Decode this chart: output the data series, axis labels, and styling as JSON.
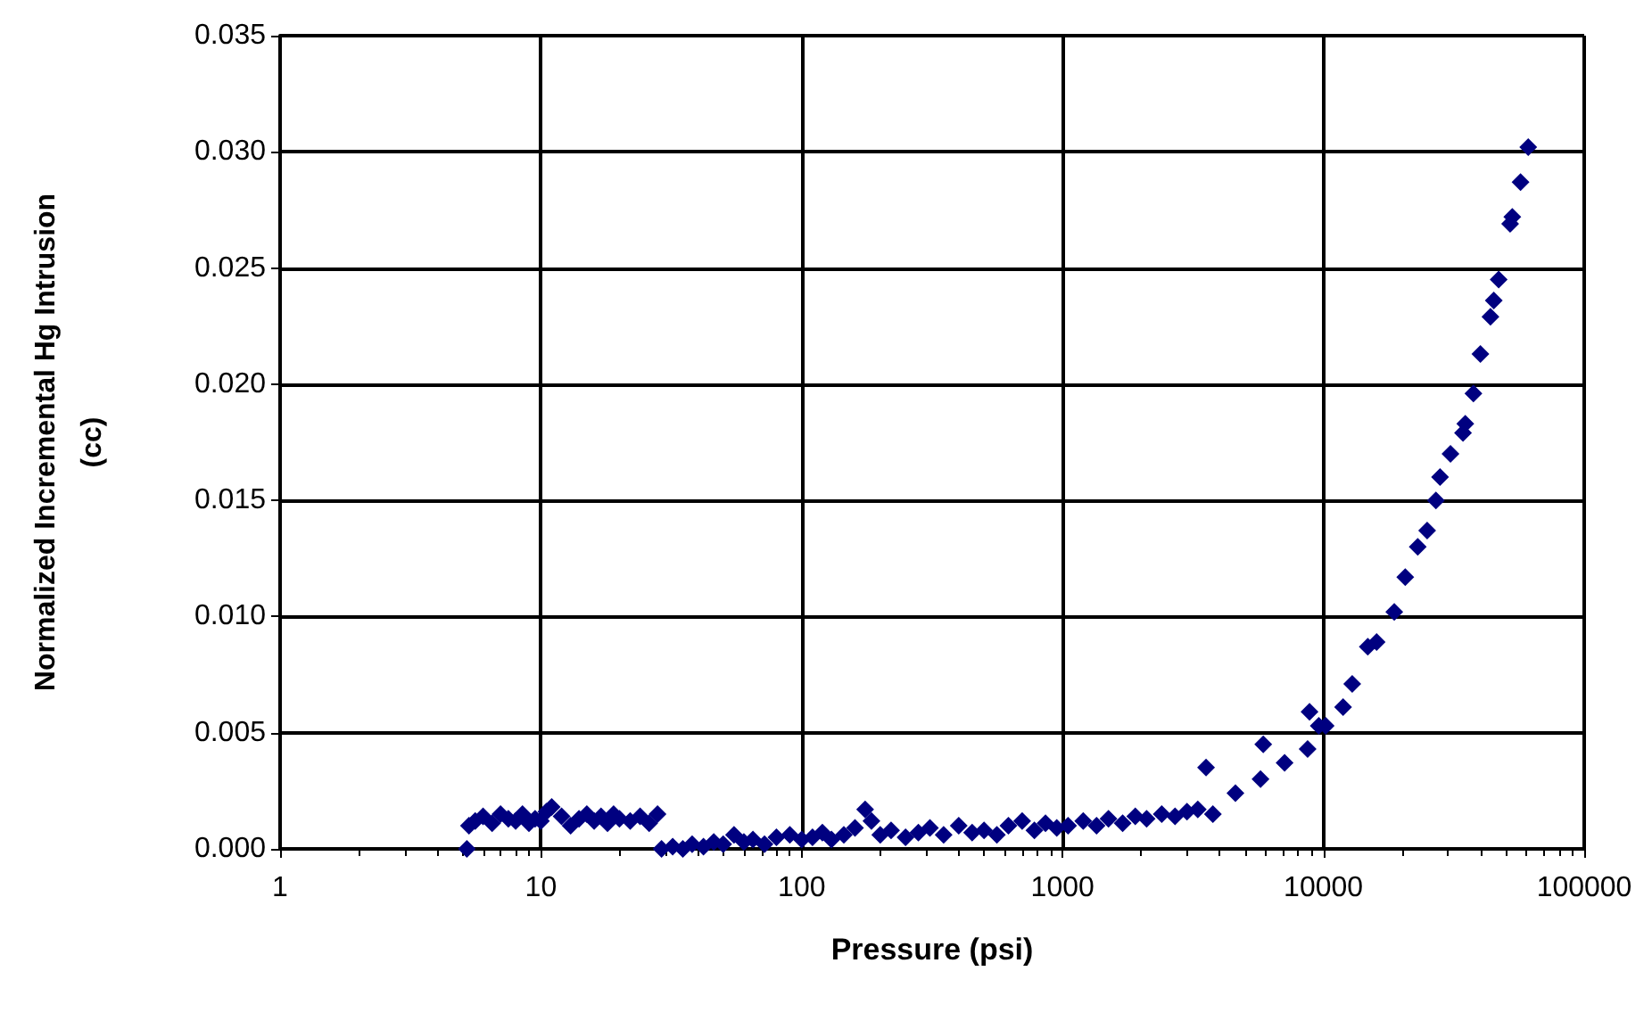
{
  "chart_data": {
    "type": "scatter",
    "xlabel": "Pressure (psi)",
    "ylabel": "Normalized Incremental Hg Intrusion\n(cc)",
    "log": "x",
    "grid": true,
    "marker": "diamond",
    "xlim": [
      1,
      100000
    ],
    "xticks": [
      1,
      10,
      100,
      1000,
      10000,
      100000
    ],
    "ylim": [
      0,
      0.035
    ],
    "yticks": [
      {
        "value": 0,
        "label": "0.000"
      },
      {
        "value": 0.005,
        "label": "0.005"
      },
      {
        "value": 0.01,
        "label": "0.010"
      },
      {
        "value": 0.015,
        "label": "0.015"
      },
      {
        "value": 0.02,
        "label": "0.020"
      },
      {
        "value": 0.025,
        "label": "0.025"
      },
      {
        "value": 0.03,
        "label": "0.030"
      },
      {
        "value": 0.035,
        "label": "0.035"
      }
    ],
    "series": [
      {
        "color": "#000080",
        "x": [
          5.2,
          5.3,
          5.6,
          6,
          6.5,
          7,
          7.5,
          8,
          8.5,
          9,
          9.5,
          10,
          10.5,
          11,
          12,
          13,
          14,
          15,
          16,
          17,
          18,
          19,
          20,
          22,
          24,
          26,
          28,
          29,
          32,
          35,
          38,
          42,
          46,
          50,
          55,
          60,
          65,
          72,
          80,
          90,
          100,
          110,
          120,
          130,
          145,
          160,
          175,
          185,
          200,
          220,
          250,
          280,
          310,
          350,
          400,
          450,
          500,
          560,
          620,
          700,
          780,
          860,
          950,
          1050,
          1200,
          1350,
          1500,
          1700,
          1900,
          2100,
          2400,
          2700,
          3000,
          3300,
          3550,
          3770,
          4600,
          5740,
          5880,
          7100,
          8700,
          8850,
          9600,
          10200,
          11900,
          12900,
          14800,
          16000,
          18700,
          20600,
          23000,
          25000,
          27000,
          28000,
          30700,
          34300,
          35000,
          37600,
          40000,
          43700,
          45000,
          47000,
          52000,
          53000,
          57000,
          61000
        ],
        "values": [
          0,
          0.001,
          0.0012,
          0.0014,
          0.0011,
          0.0015,
          0.0013,
          0.0012,
          0.0015,
          0.0011,
          0.0013,
          0.0012,
          0.0016,
          0.0018,
          0.0014,
          0.001,
          0.0013,
          0.0015,
          0.0012,
          0.0014,
          0.0011,
          0.0015,
          0.0013,
          0.0012,
          0.0014,
          0.0011,
          0.0015,
          0,
          0.0001,
          0,
          0.0002,
          0.0001,
          0.0003,
          0.0002,
          0.0006,
          0.0003,
          0.0004,
          0.0002,
          0.0005,
          0.0006,
          0.0004,
          0.0005,
          0.0007,
          0.0004,
          0.0006,
          0.0009,
          0.0017,
          0.0012,
          0.0006,
          0.0008,
          0.0005,
          0.0007,
          0.0009,
          0.0006,
          0.001,
          0.0007,
          0.0008,
          0.0006,
          0.001,
          0.0012,
          0.0008,
          0.0011,
          0.0009,
          0.001,
          0.0012,
          0.001,
          0.0013,
          0.0011,
          0.0014,
          0.0013,
          0.0015,
          0.0014,
          0.0016,
          0.0017,
          0.0035,
          0.0015,
          0.0024,
          0.003,
          0.0045,
          0.0037,
          0.0043,
          0.0059,
          0.0053,
          0.0053,
          0.0061,
          0.0071,
          0.0087,
          0.0089,
          0.0102,
          0.0117,
          0.013,
          0.0137,
          0.015,
          0.016,
          0.017,
          0.0179,
          0.0183,
          0.0196,
          0.0213,
          0.0229,
          0.0236,
          0.0245,
          0.0269,
          0.0272,
          0.0287,
          0.0302
        ]
      }
    ]
  }
}
